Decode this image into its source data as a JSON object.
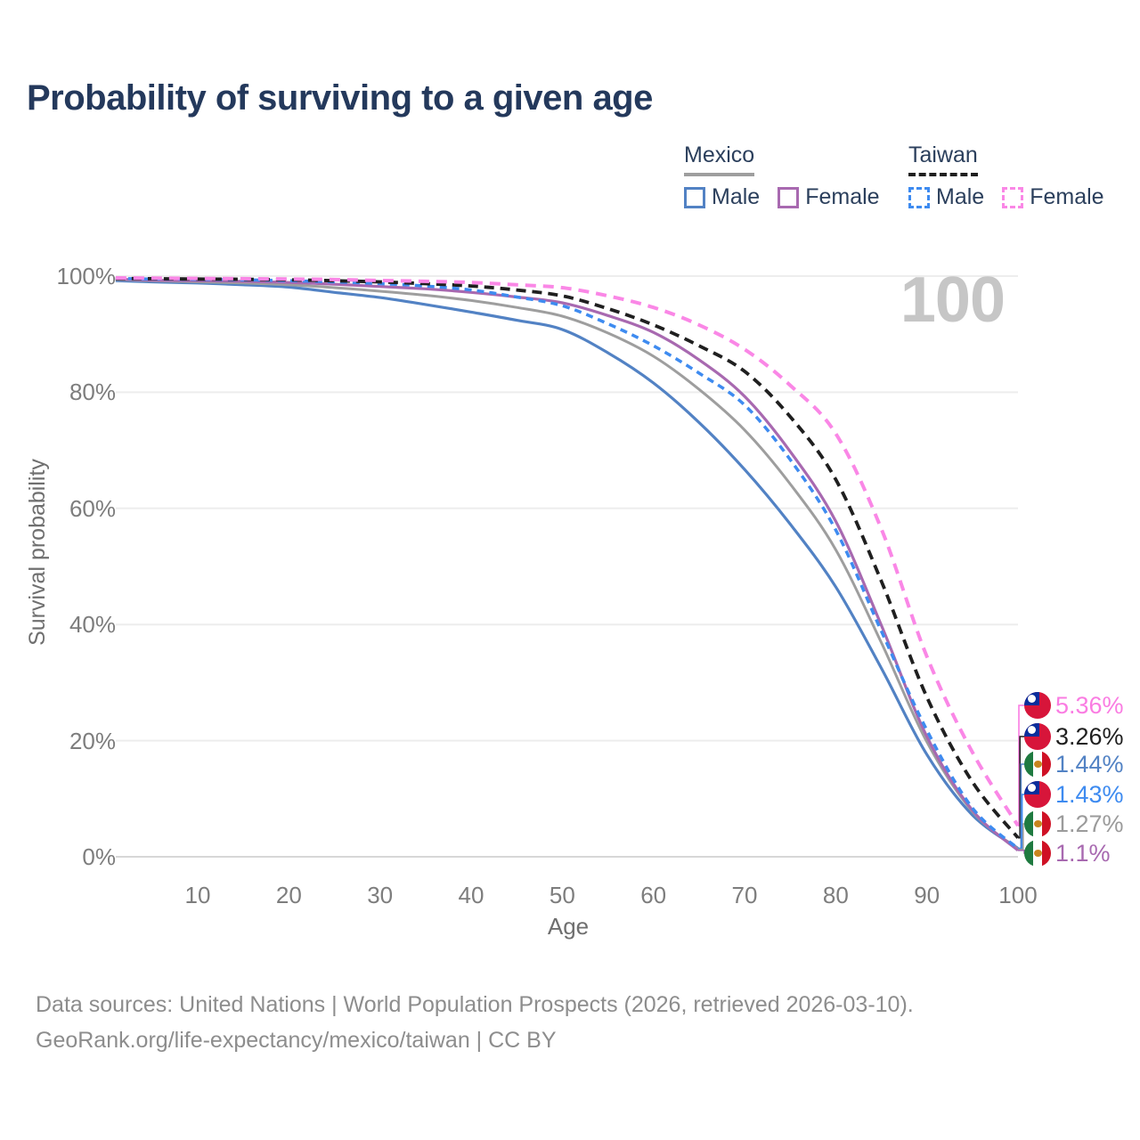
{
  "title": "Probability of surviving to a given age",
  "watermark": "100",
  "legend": {
    "groups": [
      {
        "country": "Mexico",
        "line_style": "solid",
        "line_color": "#9e9e9e",
        "items": [
          {
            "label": "Male",
            "color": "#5282c4",
            "dashed": false
          },
          {
            "label": "Female",
            "color": "#a869b0",
            "dashed": false
          }
        ]
      },
      {
        "country": "Taiwan",
        "line_style": "dashed",
        "line_color": "#1f1f1f",
        "items": [
          {
            "label": "Male",
            "color": "#3e8bf0",
            "dashed": true
          },
          {
            "label": "Female",
            "color": "#fa87e6",
            "dashed": true
          }
        ]
      }
    ]
  },
  "axes": {
    "x_title": "Age",
    "y_title": "Survival probability",
    "x_ticks": [
      "10",
      "20",
      "30",
      "40",
      "50",
      "60",
      "70",
      "80",
      "90",
      "100"
    ],
    "x_tick_values": [
      10,
      20,
      30,
      40,
      50,
      60,
      70,
      80,
      90,
      100
    ],
    "y_ticks": [
      "100%",
      "80%",
      "60%",
      "40%",
      "20%",
      "0%"
    ],
    "y_tick_values": [
      100,
      80,
      60,
      40,
      20,
      0
    ]
  },
  "end_labels": [
    {
      "flag": "taiwan",
      "text": "5.36%",
      "value": 5.36,
      "color": "#fa7ce2",
      "series": "Taiwan Female"
    },
    {
      "flag": "taiwan",
      "text": "3.26%",
      "value": 3.26,
      "color": "#1f1f1f",
      "series": "Taiwan"
    },
    {
      "flag": "mexico",
      "text": "1.44%",
      "value": 1.44,
      "color": "#5282c4",
      "series": "Mexico Male"
    },
    {
      "flag": "taiwan",
      "text": "1.43%",
      "value": 1.43,
      "color": "#3e8bf0",
      "series": "Taiwan Male"
    },
    {
      "flag": "mexico",
      "text": "1.27%",
      "value": 1.27,
      "color": "#9b9b9b",
      "series": "Mexico"
    },
    {
      "flag": "mexico",
      "text": "1.1%",
      "value": 1.1,
      "color": "#a869b0",
      "series": "Mexico Female"
    }
  ],
  "footer": {
    "line1": "Data sources: United Nations | World Population Prospects (2026, retrieved 2026-03-10).",
    "line2": "GeoRank.org/life-expectancy/mexico/taiwan | CC BY"
  },
  "chart_data": {
    "type": "line",
    "title": "Probability of surviving to a given age",
    "xlabel": "Age",
    "ylabel": "Survival probability",
    "xlim": [
      1,
      100
    ],
    "ylim": [
      0,
      100
    ],
    "grid": true,
    "legend_position": "top-right",
    "x": [
      1,
      5,
      10,
      15,
      20,
      25,
      30,
      35,
      40,
      45,
      50,
      55,
      60,
      65,
      70,
      75,
      80,
      85,
      90,
      95,
      100
    ],
    "series": [
      {
        "name": "Mexico Male",
        "color": "#5282c4",
        "dash": null,
        "width": 3.2,
        "values": [
          99.2,
          99.0,
          98.8,
          98.5,
          98.1,
          97.2,
          96.3,
          95.1,
          93.8,
          92.4,
          90.8,
          86.8,
          81.6,
          74.8,
          66.7,
          57.3,
          46.5,
          32.5,
          17.6,
          7.2,
          1.44
        ]
      },
      {
        "name": "Mexico",
        "color": "#9e9e9e",
        "dash": null,
        "width": 3.0,
        "values": [
          99.4,
          99.2,
          99.0,
          98.8,
          98.5,
          98.0,
          97.4,
          96.7,
          95.8,
          94.6,
          93.1,
          90.2,
          86.2,
          80.5,
          73.5,
          64.2,
          52.9,
          36.9,
          19.8,
          7.8,
          1.27
        ]
      },
      {
        "name": "Mexico Female",
        "color": "#a869b0",
        "dash": null,
        "width": 3.2,
        "values": [
          99.5,
          99.3,
          99.2,
          99.1,
          98.9,
          98.6,
          98.2,
          97.8,
          97.2,
          96.4,
          95.4,
          93.2,
          90.3,
          85.6,
          79.3,
          69.8,
          57.8,
          39.9,
          20.7,
          8.0,
          1.1
        ]
      },
      {
        "name": "Taiwan Male",
        "color": "#3e8bf0",
        "dash": "8 6",
        "width": 3.5,
        "values": [
          99.6,
          99.5,
          99.45,
          99.35,
          99.2,
          99.0,
          98.7,
          98.3,
          97.6,
          96.4,
          94.9,
          91.8,
          88.0,
          83.3,
          77.8,
          68.4,
          56.3,
          38.9,
          21.8,
          8.4,
          1.43
        ]
      },
      {
        "name": "Taiwan",
        "color": "#1f1f1f",
        "dash": "11 7",
        "width": 3.8,
        "values": [
          99.6,
          99.55,
          99.5,
          99.45,
          99.35,
          99.2,
          99.0,
          98.7,
          98.3,
          97.6,
          96.6,
          94.4,
          91.6,
          88.0,
          83.6,
          75.8,
          65.0,
          47.5,
          27.5,
          12.9,
          3.26
        ]
      },
      {
        "name": "Taiwan Female",
        "color": "#fa87e6",
        "dash": "12 8",
        "width": 4.0,
        "values": [
          99.7,
          99.65,
          99.6,
          99.55,
          99.5,
          99.4,
          99.25,
          99.1,
          98.9,
          98.5,
          98.0,
          96.6,
          94.6,
          91.6,
          87.4,
          81.2,
          72.9,
          56.5,
          34.5,
          18.0,
          5.36
        ]
      }
    ]
  }
}
